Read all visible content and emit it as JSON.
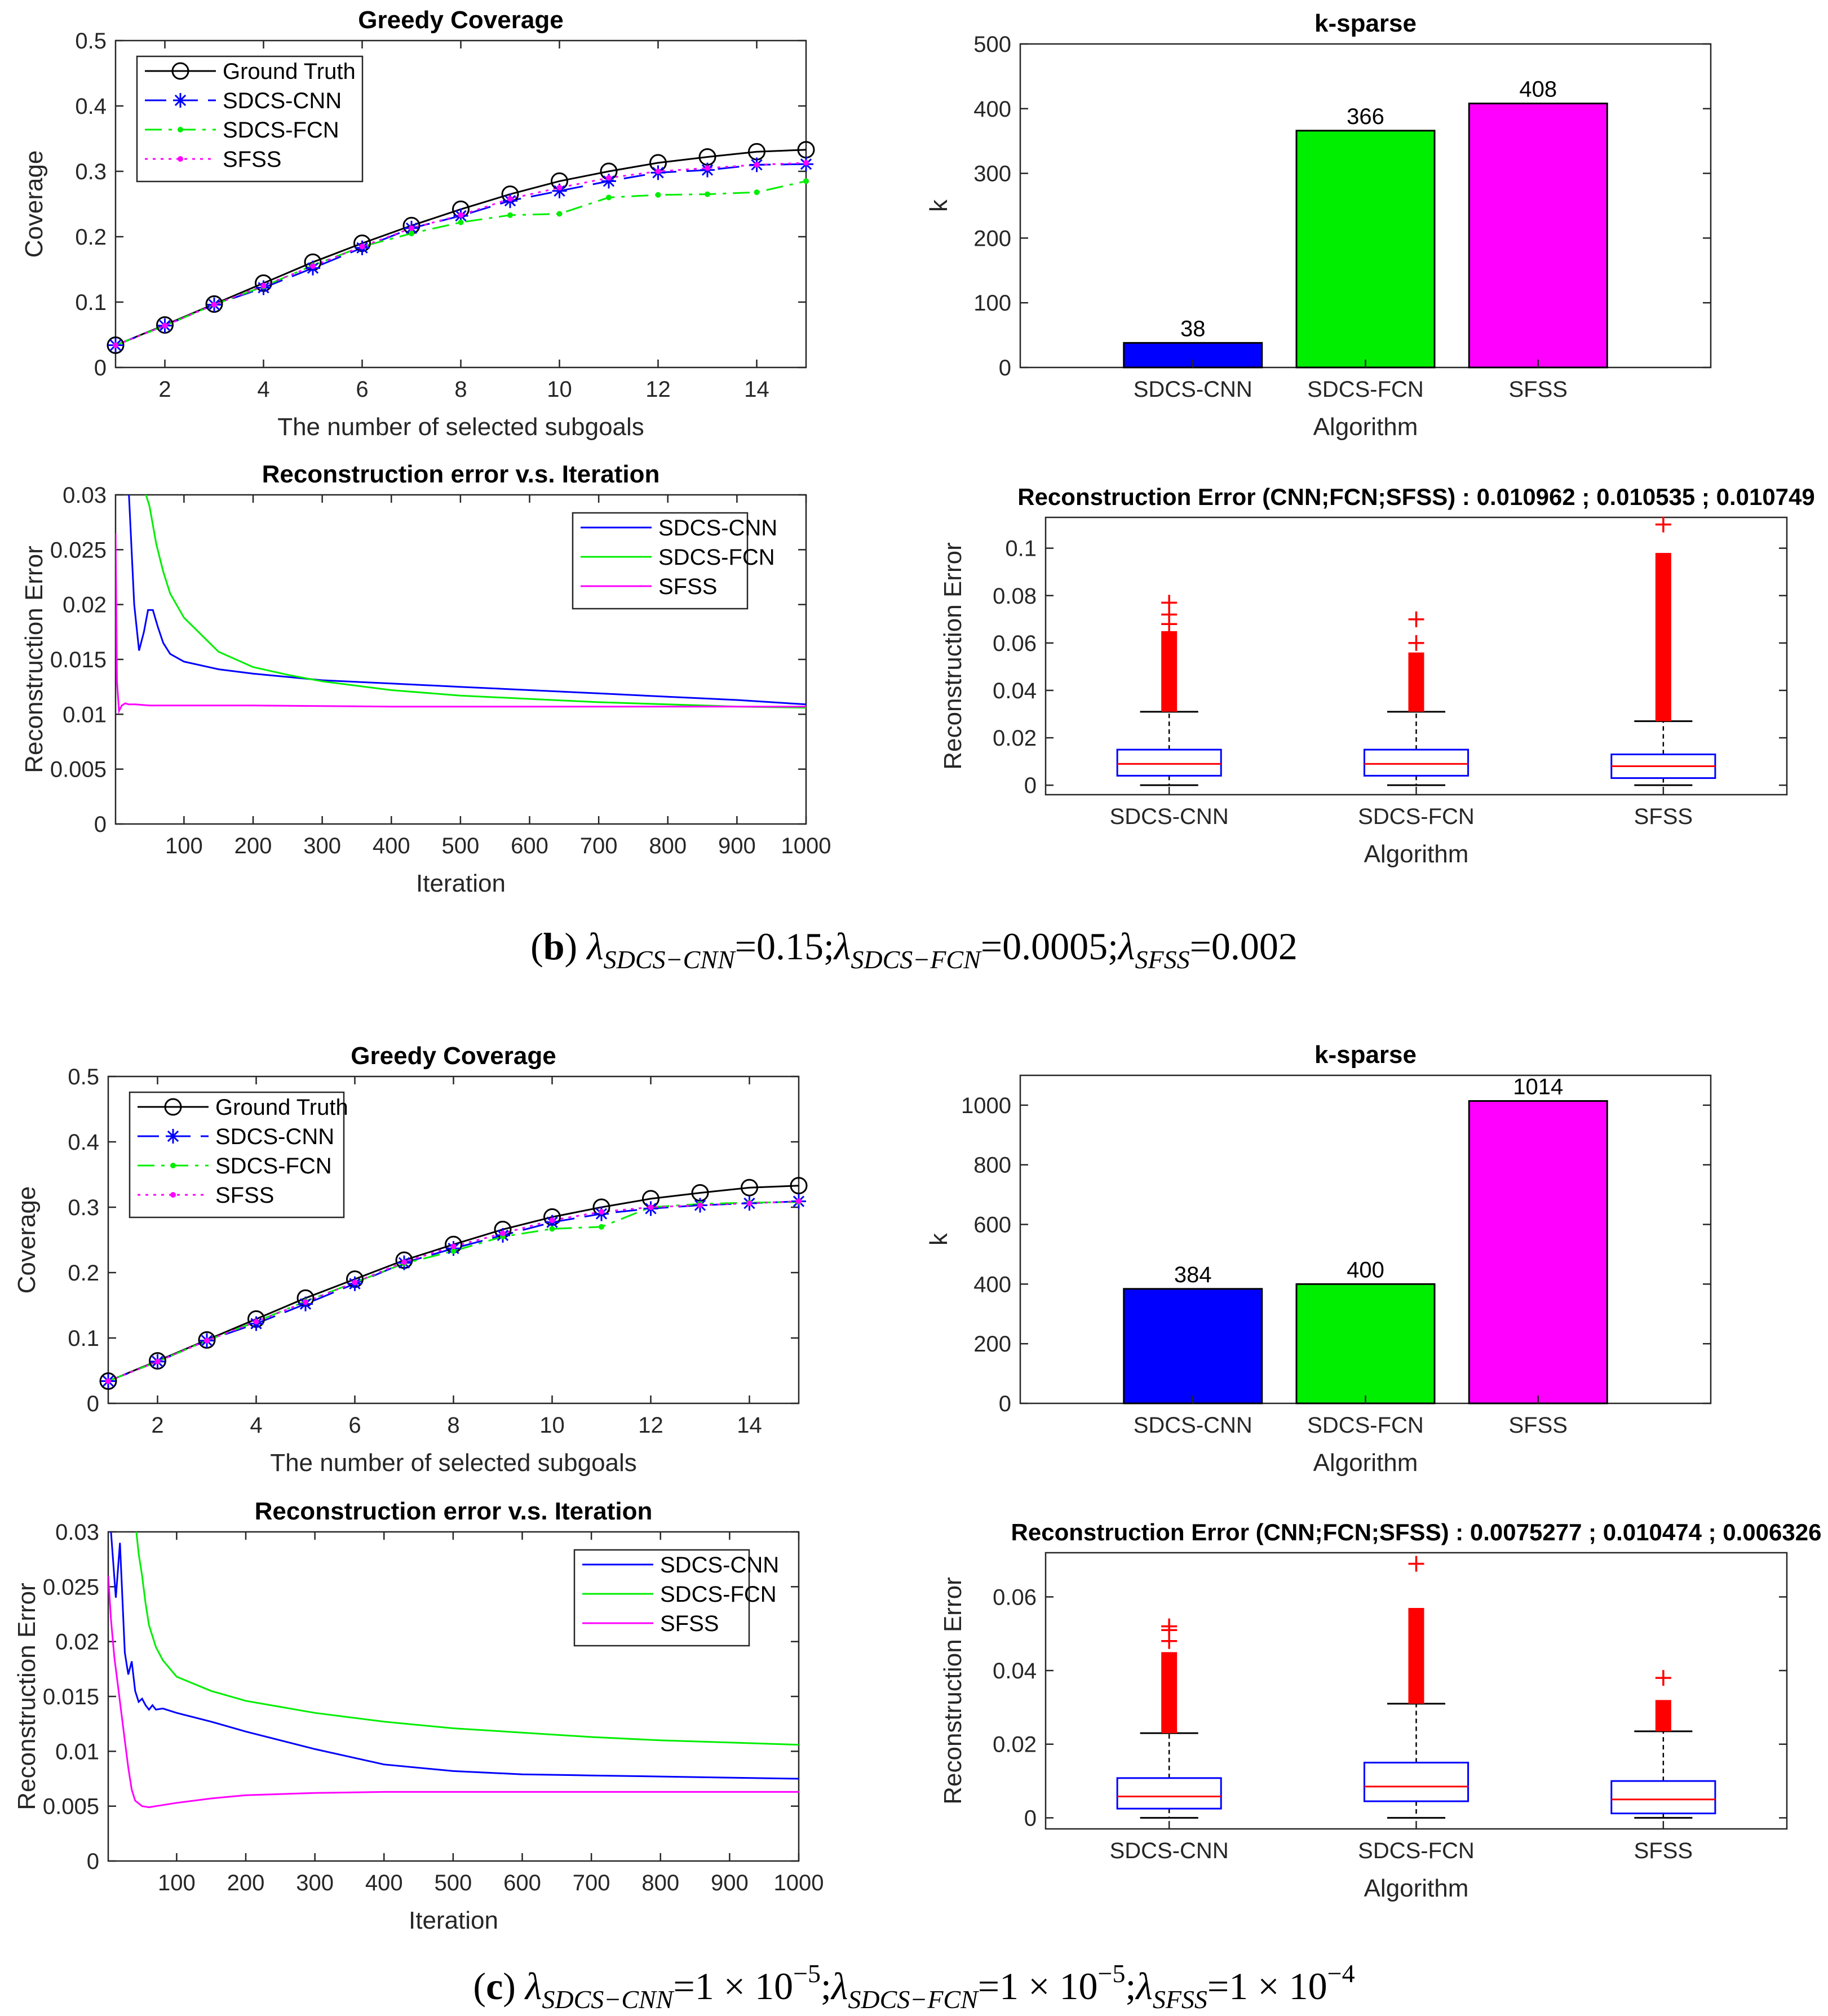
{
  "captions": {
    "b": {
      "label": "b",
      "lam": "λ",
      "sub1": "SDCS−CNN",
      "val1": "=0.15;",
      "sub2": "SDCS−FCN",
      "val2": "=0.0005;",
      "sub3": "SFSS",
      "val3": "=0.002"
    },
    "c": {
      "label": "c",
      "lam": "λ",
      "sub1": "SDCS−CNN",
      "val1": "=1 × 10",
      "exp1": "−5",
      "sep1": ";",
      "sub2": "SDCS−FCN",
      "val2": "=1 × 10",
      "exp2": "−5",
      "sep2": ";",
      "sub3": "SFSS",
      "val3": "=1 × 10",
      "exp3": "−4"
    }
  },
  "colors": {
    "ground_truth": "#000000",
    "cnn": "#0000ff",
    "fcn": "#00ee00",
    "sfss": "#ff00ff",
    "outlier": "#ff0000",
    "median": "#ff0000"
  },
  "chart_data": [
    {
      "id": "b-coverage",
      "type": "line",
      "title": "Greedy Coverage",
      "xlabel": "The number of selected subgoals",
      "ylabel": "Coverage",
      "xlim": [
        1,
        15
      ],
      "ylim": [
        0,
        0.5
      ],
      "xticks": [
        2,
        4,
        6,
        8,
        10,
        12,
        14
      ],
      "yticks": [
        0,
        0.1,
        0.2,
        0.3,
        0.4,
        0.5
      ],
      "ytick_labels": [
        "0",
        "0.1",
        "0.2",
        "0.3",
        "0.4",
        "0.5"
      ],
      "x": [
        1,
        2,
        3,
        4,
        5,
        6,
        7,
        8,
        9,
        10,
        11,
        12,
        13,
        14,
        15
      ],
      "series": [
        {
          "name": "Ground Truth",
          "style": "gt",
          "values": [
            0.034,
            0.065,
            0.097,
            0.129,
            0.161,
            0.19,
            0.217,
            0.242,
            0.265,
            0.285,
            0.3,
            0.313,
            0.322,
            0.33,
            0.333
          ]
        },
        {
          "name": "SDCS-CNN",
          "style": "cnn",
          "values": [
            0.034,
            0.064,
            0.096,
            0.122,
            0.152,
            0.183,
            0.213,
            0.232,
            0.255,
            0.27,
            0.285,
            0.298,
            0.302,
            0.31,
            0.311
          ]
        },
        {
          "name": "SDCS-FCN",
          "style": "fcn",
          "values": [
            0.034,
            0.064,
            0.096,
            0.124,
            0.156,
            0.185,
            0.205,
            0.222,
            0.233,
            0.235,
            0.26,
            0.264,
            0.265,
            0.268,
            0.285
          ]
        },
        {
          "name": "SFSS",
          "style": "sfss",
          "values": [
            0.034,
            0.064,
            0.096,
            0.125,
            0.155,
            0.185,
            0.213,
            0.233,
            0.258,
            0.275,
            0.29,
            0.3,
            0.305,
            0.31,
            0.313
          ]
        }
      ]
    },
    {
      "id": "b-ksparse",
      "type": "bar",
      "title": "k-sparse",
      "xlabel": "Algorithm",
      "ylabel": "k",
      "categories": [
        "SDCS-CNN",
        "SDCS-FCN",
        "SFSS"
      ],
      "values": [
        38,
        366,
        408
      ],
      "ylim": [
        0,
        500
      ],
      "yticks": [
        0,
        100,
        200,
        300,
        400,
        500
      ],
      "ytick_labels": [
        "0",
        "100",
        "200",
        "300",
        "400",
        "500"
      ]
    },
    {
      "id": "b-recon",
      "type": "line",
      "title": "Reconstruction error v.s. Iteration",
      "xlabel": "Iteration",
      "ylabel": "Reconstruction Error",
      "xlim": [
        1,
        1000
      ],
      "ylim": [
        0,
        0.03
      ],
      "xticks": [
        100,
        200,
        300,
        400,
        500,
        600,
        700,
        800,
        900,
        1000
      ],
      "yticks": [
        0,
        0.005,
        0.01,
        0.015,
        0.02,
        0.025,
        0.03
      ],
      "ytick_labels": [
        "0",
        "0.005",
        "0.01",
        "0.015",
        "0.02",
        "0.025",
        "0.03"
      ],
      "series": [
        {
          "name": "SDCS-CNN",
          "style": "cnn",
          "x": [
            20,
            28,
            35,
            42,
            48,
            55,
            62,
            70,
            80,
            100,
            150,
            200,
            300,
            400,
            500,
            600,
            700,
            800,
            900,
            1000
          ],
          "values": [
            0.0305,
            0.02,
            0.0158,
            0.0175,
            0.0195,
            0.0195,
            0.018,
            0.0165,
            0.0155,
            0.0148,
            0.0141,
            0.0137,
            0.0131,
            0.0128,
            0.0125,
            0.0122,
            0.0119,
            0.0116,
            0.0113,
            0.0109
          ]
        },
        {
          "name": "SDCS-FCN",
          "style": "fcn",
          "x": [
            40,
            50,
            60,
            70,
            80,
            100,
            150,
            200,
            250,
            300,
            400,
            500,
            600,
            700,
            800,
            900,
            1000
          ],
          "values": [
            0.031,
            0.029,
            0.0255,
            0.023,
            0.021,
            0.0188,
            0.0157,
            0.0143,
            0.0136,
            0.013,
            0.0122,
            0.0117,
            0.0114,
            0.0111,
            0.0109,
            0.0107,
            0.0106
          ]
        },
        {
          "name": "SFSS",
          "style": "sfss",
          "x": [
            1,
            3,
            6,
            10,
            15,
            20,
            30,
            50,
            100,
            200,
            400,
            600,
            800,
            1000
          ],
          "values": [
            0.0265,
            0.013,
            0.0103,
            0.0108,
            0.011,
            0.0109,
            0.0109,
            0.0108,
            0.0108,
            0.0108,
            0.0107,
            0.0107,
            0.0107,
            0.0107
          ]
        }
      ]
    },
    {
      "id": "b-box",
      "type": "box",
      "title": "Reconstruction Error (CNN;FCN;SFSS) : 0.010962 ; 0.010535 ; 0.010749",
      "xlabel": "Algorithm",
      "ylabel": "Reconstruction Error",
      "categories": [
        "SDCS-CNN",
        "SDCS-FCN",
        "SFSS"
      ],
      "ylim": [
        -0.004,
        0.113
      ],
      "yticks": [
        0,
        0.02,
        0.04,
        0.06,
        0.08,
        0.1
      ],
      "ytick_labels": [
        "0",
        "0.02",
        "0.04",
        "0.06",
        "0.08",
        "0.1"
      ],
      "boxes": [
        {
          "min": 0,
          "q1": 0.004,
          "median": 0.009,
          "q3": 0.015,
          "whisker_hi": 0.031,
          "outlier_band": [
            0.031,
            0.065
          ],
          "outliers": [
            0.068,
            0.072,
            0.077
          ]
        },
        {
          "min": 0,
          "q1": 0.004,
          "median": 0.009,
          "q3": 0.015,
          "whisker_hi": 0.031,
          "outlier_band": [
            0.031,
            0.056
          ],
          "outliers": [
            0.06,
            0.07
          ]
        },
        {
          "min": 0,
          "q1": 0.003,
          "median": 0.008,
          "q3": 0.013,
          "whisker_hi": 0.027,
          "outlier_band": [
            0.027,
            0.098
          ],
          "outliers": [
            0.11
          ]
        }
      ]
    },
    {
      "id": "c-coverage",
      "type": "line",
      "title": "Greedy Coverage",
      "xlabel": "The number of selected subgoals",
      "ylabel": "Coverage",
      "xlim": [
        1,
        15
      ],
      "ylim": [
        0,
        0.5
      ],
      "xticks": [
        2,
        4,
        6,
        8,
        10,
        12,
        14
      ],
      "yticks": [
        0,
        0.1,
        0.2,
        0.3,
        0.4,
        0.5
      ],
      "ytick_labels": [
        "0",
        "0.1",
        "0.2",
        "0.3",
        "0.4",
        "0.5"
      ],
      "x": [
        1,
        2,
        3,
        4,
        5,
        6,
        7,
        8,
        9,
        10,
        11,
        12,
        13,
        14,
        15
      ],
      "series": [
        {
          "name": "Ground Truth",
          "style": "gt",
          "values": [
            0.034,
            0.065,
            0.097,
            0.129,
            0.161,
            0.19,
            0.219,
            0.243,
            0.266,
            0.285,
            0.3,
            0.313,
            0.322,
            0.33,
            0.333
          ]
        },
        {
          "name": "SDCS-CNN",
          "style": "cnn",
          "values": [
            0.034,
            0.064,
            0.096,
            0.122,
            0.152,
            0.183,
            0.215,
            0.237,
            0.257,
            0.277,
            0.29,
            0.298,
            0.303,
            0.306,
            0.309
          ]
        },
        {
          "name": "SDCS-FCN",
          "style": "fcn",
          "values": [
            0.034,
            0.064,
            0.096,
            0.125,
            0.156,
            0.185,
            0.214,
            0.233,
            0.255,
            0.267,
            0.27,
            0.3,
            0.305,
            0.307,
            0.308
          ]
        },
        {
          "name": "SFSS",
          "style": "sfss",
          "values": [
            0.034,
            0.064,
            0.096,
            0.125,
            0.155,
            0.185,
            0.216,
            0.24,
            0.26,
            0.28,
            0.293,
            0.3,
            0.303,
            0.306,
            0.309
          ]
        }
      ]
    },
    {
      "id": "c-ksparse",
      "type": "bar",
      "title": "k-sparse",
      "xlabel": "Algorithm",
      "ylabel": "k",
      "categories": [
        "SDCS-CNN",
        "SDCS-FCN",
        "SFSS"
      ],
      "values": [
        384,
        400,
        1014
      ],
      "ylim": [
        0,
        1100
      ],
      "yticks": [
        0,
        200,
        400,
        600,
        800,
        1000
      ],
      "ytick_labels": [
        "0",
        "200",
        "400",
        "600",
        "800",
        "1000"
      ]
    },
    {
      "id": "c-recon",
      "type": "line",
      "title": "Reconstruction error v.s. Iteration",
      "xlabel": "Iteration",
      "ylabel": "Reconstruction Error",
      "xlim": [
        1,
        1000
      ],
      "ylim": [
        0,
        0.03
      ],
      "xticks": [
        100,
        200,
        300,
        400,
        500,
        600,
        700,
        800,
        900,
        1000
      ],
      "yticks": [
        0,
        0.005,
        0.01,
        0.015,
        0.02,
        0.025,
        0.03
      ],
      "ytick_labels": [
        "0",
        "0.005",
        "0.01",
        "0.015",
        "0.02",
        "0.025",
        "0.03"
      ],
      "series": [
        {
          "name": "SDCS-CNN",
          "style": "cnn",
          "x": [
            5,
            12,
            18,
            25,
            30,
            35,
            40,
            45,
            50,
            55,
            60,
            65,
            70,
            80,
            100,
            150,
            200,
            300,
            400,
            500,
            600,
            700,
            800,
            900,
            1000
          ],
          "values": [
            0.03,
            0.024,
            0.029,
            0.019,
            0.017,
            0.0182,
            0.0155,
            0.0145,
            0.0148,
            0.0142,
            0.0138,
            0.0142,
            0.0138,
            0.0139,
            0.0135,
            0.0127,
            0.0118,
            0.0102,
            0.0088,
            0.0082,
            0.0079,
            0.0078,
            0.0077,
            0.0076,
            0.0075
          ]
        },
        {
          "name": "SDCS-FCN",
          "style": "fcn",
          "x": [
            40,
            45,
            50,
            55,
            60,
            70,
            80,
            100,
            150,
            200,
            300,
            400,
            500,
            600,
            700,
            800,
            900,
            1000
          ],
          "values": [
            0.031,
            0.028,
            0.026,
            0.0235,
            0.0215,
            0.0195,
            0.0183,
            0.0168,
            0.0155,
            0.0146,
            0.0135,
            0.0127,
            0.0121,
            0.0117,
            0.0113,
            0.011,
            0.0108,
            0.0106
          ]
        },
        {
          "name": "SFSS",
          "style": "sfss",
          "x": [
            1,
            5,
            10,
            15,
            20,
            25,
            30,
            35,
            40,
            50,
            60,
            80,
            100,
            150,
            200,
            300,
            400,
            500,
            600,
            700,
            800,
            900,
            1000
          ],
          "values": [
            0.026,
            0.022,
            0.0185,
            0.016,
            0.0135,
            0.011,
            0.0085,
            0.0065,
            0.0055,
            0.005,
            0.0049,
            0.0051,
            0.0053,
            0.0057,
            0.006,
            0.0062,
            0.0063,
            0.0063,
            0.0063,
            0.0063,
            0.0063,
            0.0063,
            0.0063
          ]
        }
      ]
    },
    {
      "id": "c-box",
      "type": "box",
      "title": "Reconstruction Error (CNN;FCN;SFSS) : 0.0075277 ; 0.010474 ; 0.006326",
      "xlabel": "Algorithm",
      "ylabel": "Reconstruction Error",
      "categories": [
        "SDCS-CNN",
        "SDCS-FCN",
        "SFSS"
      ],
      "ylim": [
        -0.003,
        0.072
      ],
      "yticks": [
        0,
        0.02,
        0.04,
        0.06
      ],
      "ytick_labels": [
        "0",
        "0.02",
        "0.04",
        "0.06"
      ],
      "boxes": [
        {
          "min": 0,
          "q1": 0.0025,
          "median": 0.0058,
          "q3": 0.0108,
          "whisker_hi": 0.023,
          "outlier_band": [
            0.023,
            0.045
          ],
          "outliers": [
            0.048,
            0.051,
            0.052
          ]
        },
        {
          "min": 0,
          "q1": 0.0045,
          "median": 0.0085,
          "q3": 0.015,
          "whisker_hi": 0.031,
          "outlier_band": [
            0.031,
            0.057
          ],
          "outliers": [
            0.069
          ]
        },
        {
          "min": 0,
          "q1": 0.0012,
          "median": 0.005,
          "q3": 0.01,
          "whisker_hi": 0.0235,
          "outlier_band": [
            0.0235,
            0.032
          ],
          "outliers": [
            0.038
          ]
        }
      ]
    }
  ]
}
